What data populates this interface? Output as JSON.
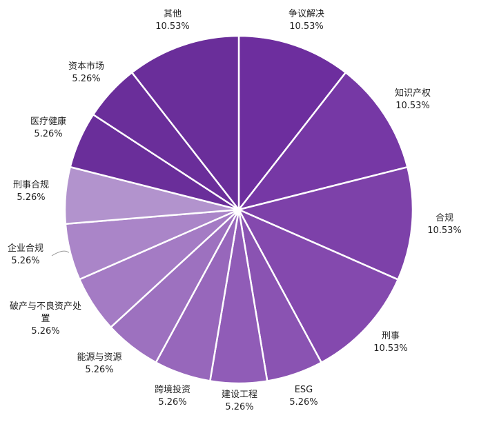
{
  "chart_data": {
    "type": "pie",
    "title": "",
    "start_angle_deg": 0,
    "direction": "clockwise",
    "slices": [
      {
        "label": "争议解决",
        "value": 10.53,
        "value_label": "10.53%",
        "color": "#6d2e9e"
      },
      {
        "label": "知识产权",
        "value": 10.53,
        "value_label": "10.53%",
        "color": "#7638a5"
      },
      {
        "label": "合规",
        "value": 10.53,
        "value_label": "10.53%",
        "color": "#7d41a9"
      },
      {
        "label": "刑事",
        "value": 10.53,
        "value_label": "10.53%",
        "color": "#8449ae"
      },
      {
        "label": "ESG",
        "value": 5.26,
        "value_label": "5.26%",
        "color": "#8a53b2"
      },
      {
        "label": "建设工程",
        "value": 5.26,
        "value_label": "5.26%",
        "color": "#905cb7"
      },
      {
        "label": "跨境投资",
        "value": 5.26,
        "value_label": "5.26%",
        "color": "#9767bb"
      },
      {
        "label": "能源与资源",
        "value": 5.26,
        "value_label": "5.26%",
        "color": "#9d71bf"
      },
      {
        "label": "破产与不良资产处置",
        "value": 5.26,
        "value_label": "5.26%",
        "color": "#a47bc4"
      },
      {
        "label": "企业合规",
        "value": 5.26,
        "value_label": "5.26%",
        "color": "#aa85c8"
      },
      {
        "label": "刑事合规",
        "value": 5.26,
        "value_label": "5.26%",
        "color": "#b293cd"
      },
      {
        "label": "医疗健康",
        "value": 5.26,
        "value_label": "5.26%",
        "color": "#6a2e9a"
      },
      {
        "label": "资本市场",
        "value": 5.26,
        "value_label": "5.26%",
        "color": "#6a2e9a"
      },
      {
        "label": "其他",
        "value": 10.53,
        "value_label": "10.53%",
        "color": "#6a2e9a"
      }
    ]
  }
}
